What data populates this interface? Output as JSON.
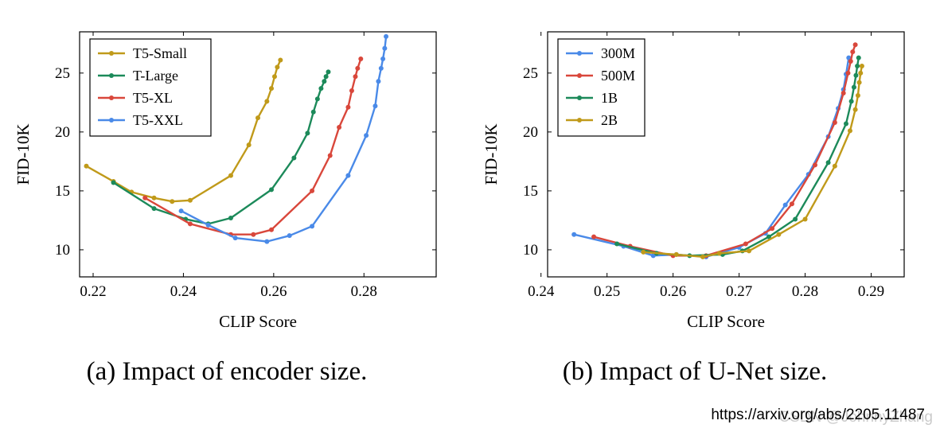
{
  "chart_data": [
    {
      "type": "line",
      "xlabel": "CLIP Score",
      "ylabel": "FID-10K",
      "xlim": [
        0.217,
        0.296
      ],
      "ylim": [
        7.7,
        28.5
      ],
      "xticks": [
        0.22,
        0.24,
        0.26,
        0.28
      ],
      "yticks": [
        10,
        15,
        20,
        25
      ],
      "legend_position": "top-left",
      "caption": "(a) Impact of encoder size.",
      "series": [
        {
          "name": "T5-Small",
          "color": "#c09a1a",
          "points": [
            [
              0.2185,
              17.1
            ],
            [
              0.2245,
              15.8
            ],
            [
              0.2285,
              14.9
            ],
            [
              0.2335,
              14.4
            ],
            [
              0.2375,
              14.1
            ],
            [
              0.2415,
              14.2
            ],
            [
              0.2505,
              16.3
            ],
            [
              0.2545,
              18.9
            ],
            [
              0.2565,
              21.2
            ],
            [
              0.2585,
              22.6
            ],
            [
              0.2595,
              23.7
            ],
            [
              0.2602,
              24.7
            ],
            [
              0.2608,
              25.5
            ],
            [
              0.2615,
              26.1
            ]
          ]
        },
        {
          "name": "T-Large",
          "color": "#1c8a5a",
          "points": [
            [
              0.2245,
              15.7
            ],
            [
              0.2335,
              13.5
            ],
            [
              0.2405,
              12.6
            ],
            [
              0.2455,
              12.2
            ],
            [
              0.2505,
              12.7
            ],
            [
              0.2595,
              15.1
            ],
            [
              0.2645,
              17.8
            ],
            [
              0.2675,
              19.9
            ],
            [
              0.2688,
              21.7
            ],
            [
              0.2697,
              22.8
            ],
            [
              0.2705,
              23.7
            ],
            [
              0.2712,
              24.3
            ],
            [
              0.2716,
              24.7
            ],
            [
              0.2721,
              25.1
            ]
          ]
        },
        {
          "name": "T5-XL",
          "color": "#d9473b",
          "points": [
            [
              0.2315,
              14.4
            ],
            [
              0.2415,
              12.2
            ],
            [
              0.2505,
              11.3
            ],
            [
              0.2555,
              11.3
            ],
            [
              0.2595,
              11.7
            ],
            [
              0.2685,
              15.0
            ],
            [
              0.2725,
              18.0
            ],
            [
              0.2745,
              20.4
            ],
            [
              0.2765,
              22.1
            ],
            [
              0.2773,
              23.5
            ],
            [
              0.2781,
              24.7
            ],
            [
              0.2786,
              25.4
            ],
            [
              0.2793,
              26.2
            ]
          ]
        },
        {
          "name": "T5-XXL",
          "color": "#4a8ae8",
          "points": [
            [
              0.2395,
              13.3
            ],
            [
              0.2455,
              12.1
            ],
            [
              0.2515,
              11.0
            ],
            [
              0.2585,
              10.7
            ],
            [
              0.2635,
              11.2
            ],
            [
              0.2685,
              12.0
            ],
            [
              0.2765,
              16.3
            ],
            [
              0.2805,
              19.7
            ],
            [
              0.2825,
              22.2
            ],
            [
              0.2832,
              24.3
            ],
            [
              0.2838,
              25.4
            ],
            [
              0.2842,
              26.2
            ],
            [
              0.2846,
              27.1
            ],
            [
              0.2849,
              28.1
            ]
          ]
        }
      ]
    },
    {
      "type": "line",
      "xlabel": "CLIP Score",
      "ylabel": "FID-10K",
      "xlim": [
        0.241,
        0.295
      ],
      "ylim": [
        7.7,
        28.5
      ],
      "xticks": [
        0.24,
        0.25,
        0.26,
        0.27,
        0.28,
        0.29
      ],
      "yticks": [
        10,
        15,
        20,
        25
      ],
      "legend_position": "top-left",
      "caption": "(b) Impact of U-Net size.",
      "series": [
        {
          "name": "300M",
          "color": "#4a8ae8",
          "points": [
            [
              0.245,
              11.3
            ],
            [
              0.2525,
              10.3
            ],
            [
              0.257,
              9.5
            ],
            [
              0.2605,
              9.6
            ],
            [
              0.265,
              9.4
            ],
            [
              0.27,
              10.2
            ],
            [
              0.274,
              11.4
            ],
            [
              0.277,
              13.8
            ],
            [
              0.2805,
              16.4
            ],
            [
              0.2835,
              19.6
            ],
            [
              0.285,
              22.0
            ],
            [
              0.2858,
              23.6
            ],
            [
              0.2862,
              24.9
            ],
            [
              0.2866,
              26.3
            ]
          ]
        },
        {
          "name": "500M",
          "color": "#d9473b",
          "points": [
            [
              0.248,
              11.1
            ],
            [
              0.2535,
              10.3
            ],
            [
              0.26,
              9.5
            ],
            [
              0.265,
              9.5
            ],
            [
              0.271,
              10.5
            ],
            [
              0.275,
              11.8
            ],
            [
              0.278,
              13.9
            ],
            [
              0.2815,
              17.2
            ],
            [
              0.2845,
              20.8
            ],
            [
              0.2858,
              23.3
            ],
            [
              0.2865,
              25.0
            ],
            [
              0.2869,
              26.0
            ],
            [
              0.2872,
              26.8
            ],
            [
              0.2876,
              27.4
            ]
          ]
        },
        {
          "name": "1B",
          "color": "#1c8a5a",
          "points": [
            [
              0.2515,
              10.5
            ],
            [
              0.2575,
              9.7
            ],
            [
              0.2625,
              9.5
            ],
            [
              0.2675,
              9.6
            ],
            [
              0.2705,
              9.9
            ],
            [
              0.2745,
              11.1
            ],
            [
              0.2785,
              12.6
            ],
            [
              0.2835,
              17.4
            ],
            [
              0.2862,
              20.7
            ],
            [
              0.287,
              22.6
            ],
            [
              0.2874,
              23.8
            ],
            [
              0.2877,
              24.8
            ],
            [
              0.2879,
              25.6
            ],
            [
              0.2881,
              26.3
            ]
          ]
        },
        {
          "name": "2B",
          "color": "#c09a1a",
          "points": [
            [
              0.2555,
              9.8
            ],
            [
              0.2605,
              9.6
            ],
            [
              0.2645,
              9.4
            ],
            [
              0.267,
              9.7
            ],
            [
              0.2715,
              9.9
            ],
            [
              0.276,
              11.3
            ],
            [
              0.28,
              12.6
            ],
            [
              0.2845,
              17.1
            ],
            [
              0.2868,
              20.1
            ],
            [
              0.2876,
              21.9
            ],
            [
              0.288,
              23.1
            ],
            [
              0.2882,
              24.2
            ],
            [
              0.2884,
              25.0
            ],
            [
              0.2886,
              25.6
            ]
          ]
        }
      ]
    }
  ],
  "source_url": "https://arxiv.org/abs/2205.11487",
  "watermark": "CSDN @JohnnyZhang"
}
